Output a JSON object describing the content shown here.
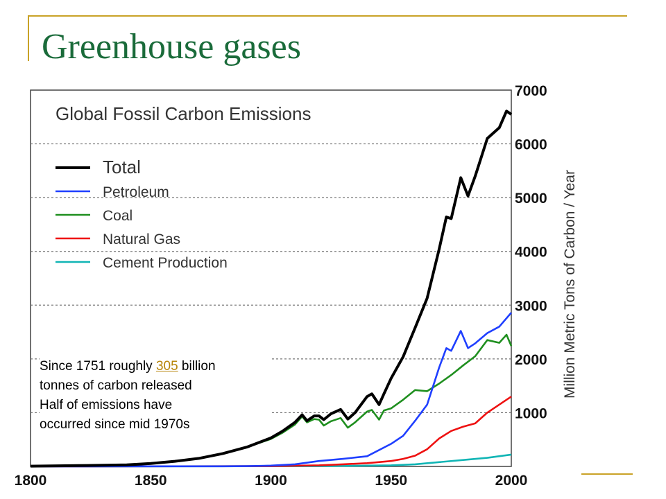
{
  "slide": {
    "title": "Greenhouse gases",
    "colors": {
      "title": "#1a6b3a",
      "accent": "#c9a227"
    }
  },
  "note": {
    "line1_prefix": "Since 1751 roughly ",
    "link_value": "305",
    "line1_suffix": " billion",
    "line2": "tonnes of carbon released",
    "line3": "Half of emissions have",
    "line4": "occurred since mid 1970s"
  },
  "chart_data": {
    "type": "line",
    "title": "Global Fossil Carbon Emissions",
    "xlabel": "",
    "ylabel": "Million Metric Tons of Carbon / Year",
    "xlim": [
      1800,
      2000
    ],
    "ylim": [
      0,
      7000
    ],
    "x_ticks": [
      1800,
      1850,
      1900,
      1950,
      2000
    ],
    "y_ticks": [
      1000,
      2000,
      3000,
      4000,
      5000,
      6000,
      7000
    ],
    "grid": "horizontal-dotted",
    "legend_position": "top-left",
    "series": [
      {
        "name": "Total",
        "color": "#000000",
        "x": [
          1800,
          1820,
          1840,
          1850,
          1860,
          1870,
          1880,
          1890,
          1900,
          1905,
          1910,
          1913,
          1915,
          1918,
          1920,
          1922,
          1925,
          1929,
          1932,
          1935,
          1940,
          1942,
          1945,
          1947,
          1950,
          1955,
          1960,
          1965,
          1970,
          1973,
          1975,
          1979,
          1982,
          1985,
          1990,
          1995,
          1998,
          2000
        ],
        "y": [
          5,
          15,
          30,
          55,
          95,
          150,
          240,
          360,
          530,
          660,
          820,
          960,
          850,
          940,
          940,
          870,
          980,
          1060,
          880,
          1000,
          1300,
          1350,
          1150,
          1350,
          1640,
          2040,
          2580,
          3130,
          4040,
          4640,
          4610,
          5370,
          5030,
          5400,
          6100,
          6300,
          6610,
          6550
        ]
      },
      {
        "name": "Petroleum",
        "color": "#1f3fff",
        "x": [
          1800,
          1880,
          1890,
          1900,
          1910,
          1920,
          1930,
          1940,
          1950,
          1955,
          1960,
          1965,
          1970,
          1973,
          1975,
          1979,
          1982,
          1985,
          1990,
          1995,
          2000
        ],
        "y": [
          0,
          2,
          5,
          15,
          40,
          100,
          140,
          190,
          420,
          570,
          850,
          1150,
          1840,
          2200,
          2150,
          2520,
          2200,
          2290,
          2480,
          2600,
          2860
        ]
      },
      {
        "name": "Coal",
        "color": "#1f8f1f",
        "x": [
          1800,
          1820,
          1840,
          1850,
          1860,
          1870,
          1880,
          1890,
          1900,
          1905,
          1910,
          1913,
          1915,
          1918,
          1920,
          1922,
          1925,
          1929,
          1932,
          1935,
          1940,
          1942,
          1945,
          1947,
          1950,
          1955,
          1960,
          1965,
          1970,
          1975,
          1980,
          1985,
          1990,
          1995,
          1998,
          2000
        ],
        "y": [
          5,
          15,
          30,
          55,
          95,
          150,
          240,
          360,
          510,
          630,
          780,
          930,
          820,
          880,
          870,
          760,
          840,
          900,
          720,
          820,
          1020,
          1050,
          870,
          1040,
          1080,
          1240,
          1420,
          1400,
          1540,
          1700,
          1880,
          2050,
          2350,
          2300,
          2450,
          2240
        ]
      },
      {
        "name": "Natural Gas",
        "color": "#ee1111",
        "x": [
          1800,
          1900,
          1920,
          1930,
          1940,
          1950,
          1955,
          1960,
          1965,
          1970,
          1975,
          1980,
          1985,
          1990,
          1995,
          2000
        ],
        "y": [
          0,
          5,
          20,
          40,
          60,
          100,
          140,
          200,
          320,
          520,
          660,
          740,
          800,
          1000,
          1150,
          1300
        ]
      },
      {
        "name": "Cement Production",
        "color": "#11b5b5",
        "x": [
          1800,
          1920,
          1930,
          1940,
          1950,
          1960,
          1970,
          1980,
          1990,
          2000
        ],
        "y": [
          0,
          5,
          10,
          15,
          20,
          40,
          80,
          120,
          160,
          220
        ]
      }
    ]
  }
}
